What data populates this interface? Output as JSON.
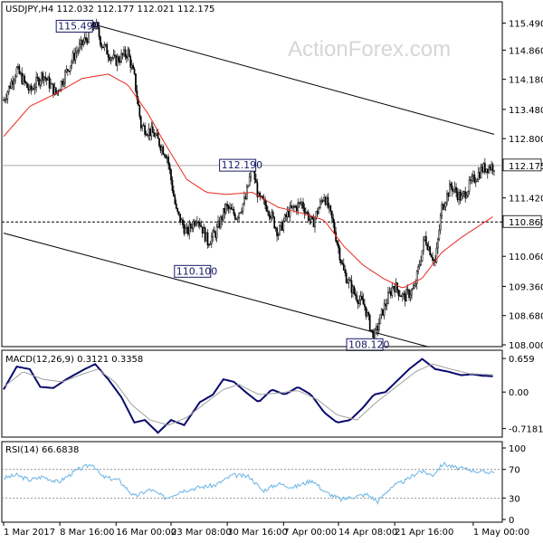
{
  "header": {
    "main": "USDJPY,H4  112.032 112.177 112.021 112.175",
    "macd": "MACD(12,26,9) 0.3121 0.3358",
    "rsi": "RSI(14) 66.6838"
  },
  "watermark": "ActionForex.com",
  "colors": {
    "candle": "#000000",
    "ma": "#e8281e",
    "macd_line": "#0a0a6e",
    "macd_signal": "#a0a0a0",
    "rsi": "#6cb4e4",
    "channel": "#000000"
  },
  "chart_data": [
    {
      "type": "candlestick",
      "title": "USDJPY,H4",
      "ylim": [
        108.0,
        115.9
      ],
      "y_ticks": [
        "115.490",
        "114.860",
        "114.180",
        "113.480",
        "112.800",
        "112.175",
        "111.420",
        "110.860",
        "110.060",
        "109.360",
        "108.680",
        "108.000"
      ],
      "x_ticks": [
        "1 Mar 2017",
        "8 Mar 16:00",
        "16 Mar 00:00",
        "23 Mar 08:00",
        "30 Mar 16:00",
        "7 Apr 00:00",
        "14 Apr 08:00",
        "21 Apr 16:00",
        "1 May 00:00"
      ],
      "x_tick_index": [
        0,
        43,
        86,
        128,
        171,
        214,
        256,
        299,
        359
      ],
      "bar_count": 376,
      "close_path": [
        [
          0,
          113.7
        ],
        [
          10,
          114.4
        ],
        [
          20,
          113.9
        ],
        [
          30,
          114.3
        ],
        [
          40,
          113.85
        ],
        [
          55,
          114.8
        ],
        [
          65,
          115.2
        ],
        [
          70,
          115.49
        ],
        [
          75,
          115.0
        ],
        [
          85,
          114.6
        ],
        [
          95,
          114.8
        ],
        [
          100,
          114.2
        ],
        [
          105,
          113.1
        ],
        [
          115,
          112.9
        ],
        [
          125,
          112.4
        ],
        [
          132,
          111.1
        ],
        [
          140,
          110.6
        ],
        [
          148,
          111.0
        ],
        [
          156,
          110.4
        ],
        [
          162,
          110.6
        ],
        [
          170,
          111.2
        ],
        [
          178,
          111.0
        ],
        [
          185,
          111.4
        ],
        [
          190,
          112.19
        ],
        [
          195,
          111.4
        ],
        [
          202,
          111.2
        ],
        [
          210,
          110.6
        ],
        [
          218,
          111.1
        ],
        [
          228,
          111.3
        ],
        [
          236,
          110.8
        ],
        [
          245,
          111.5
        ],
        [
          252,
          110.8
        ],
        [
          260,
          109.7
        ],
        [
          268,
          109.2
        ],
        [
          276,
          108.9
        ],
        [
          283,
          108.12
        ],
        [
          290,
          108.8
        ],
        [
          298,
          109.4
        ],
        [
          306,
          109.1
        ],
        [
          314,
          109.3
        ],
        [
          322,
          110.5
        ],
        [
          330,
          109.9
        ],
        [
          335,
          111.2
        ],
        [
          342,
          111.7
        ],
        [
          350,
          111.4
        ],
        [
          358,
          111.8
        ],
        [
          366,
          112.1
        ],
        [
          375,
          112.175
        ]
      ],
      "ma_path": [
        [
          0,
          112.85
        ],
        [
          20,
          113.55
        ],
        [
          40,
          113.85
        ],
        [
          60,
          114.2
        ],
        [
          80,
          114.3
        ],
        [
          95,
          114.05
        ],
        [
          110,
          113.4
        ],
        [
          125,
          112.6
        ],
        [
          140,
          111.85
        ],
        [
          155,
          111.55
        ],
        [
          170,
          111.5
        ],
        [
          190,
          111.55
        ],
        [
          210,
          111.2
        ],
        [
          230,
          111.05
        ],
        [
          245,
          110.9
        ],
        [
          260,
          110.3
        ],
        [
          275,
          109.85
        ],
        [
          290,
          109.55
        ],
        [
          305,
          109.32
        ],
        [
          320,
          109.55
        ],
        [
          335,
          110.15
        ],
        [
          350,
          110.5
        ],
        [
          365,
          110.8
        ],
        [
          375,
          111.0
        ]
      ],
      "current_price": "112.175",
      "level_line": "110.860",
      "channel": {
        "upper": [
          [
            70,
            115.45
          ],
          [
            375,
            112.9
          ]
        ],
        "lower": [
          [
            0,
            110.6
          ],
          [
            325,
            107.95
          ]
        ]
      },
      "annotations": [
        {
          "label": "115.490",
          "x": 70,
          "y": 115.49
        },
        {
          "label": "112.190",
          "x": 190,
          "y": 112.19
        },
        {
          "label": "110.100",
          "x": 150,
          "y": 110.1
        },
        {
          "label": "108.120",
          "x": 283,
          "y": 108.12
        }
      ]
    },
    {
      "type": "line",
      "title": "MACD(12,26,9)",
      "ylim": [
        -0.85,
        0.75
      ],
      "y_ticks": [
        "0.659",
        "0.00",
        "-0.7181"
      ],
      "series": [
        {
          "role": "macd",
          "points": [
            [
              0,
              0.05
            ],
            [
              10,
              0.5
            ],
            [
              20,
              0.45
            ],
            [
              28,
              0.1
            ],
            [
              38,
              0.08
            ],
            [
              48,
              0.25
            ],
            [
              62,
              0.45
            ],
            [
              70,
              0.55
            ],
            [
              80,
              0.25
            ],
            [
              90,
              -0.1
            ],
            [
              100,
              -0.6
            ],
            [
              108,
              -0.55
            ],
            [
              118,
              -0.8
            ],
            [
              128,
              -0.55
            ],
            [
              138,
              -0.65
            ],
            [
              150,
              -0.2
            ],
            [
              160,
              -0.05
            ],
            [
              168,
              0.25
            ],
            [
              176,
              0.2
            ],
            [
              185,
              0.0
            ],
            [
              195,
              -0.2
            ],
            [
              205,
              0.05
            ],
            [
              215,
              -0.05
            ],
            [
              225,
              0.1
            ],
            [
              235,
              -0.05
            ],
            [
              245,
              -0.4
            ],
            [
              255,
              -0.6
            ],
            [
              265,
              -0.55
            ],
            [
              275,
              -0.3
            ],
            [
              283,
              -0.05
            ],
            [
              292,
              0.0
            ],
            [
              300,
              0.2
            ],
            [
              310,
              0.45
            ],
            [
              320,
              0.65
            ],
            [
              330,
              0.45
            ],
            [
              340,
              0.4
            ],
            [
              350,
              0.33
            ],
            [
              358,
              0.35
            ],
            [
              366,
              0.32
            ],
            [
              375,
              0.31
            ]
          ]
        },
        {
          "role": "signal",
          "points": [
            [
              0,
              0.1
            ],
            [
              15,
              0.4
            ],
            [
              30,
              0.25
            ],
            [
              45,
              0.2
            ],
            [
              60,
              0.35
            ],
            [
              72,
              0.45
            ],
            [
              85,
              0.2
            ],
            [
              98,
              -0.25
            ],
            [
              112,
              -0.55
            ],
            [
              126,
              -0.65
            ],
            [
              140,
              -0.5
            ],
            [
              155,
              -0.2
            ],
            [
              168,
              0.05
            ],
            [
              180,
              0.15
            ],
            [
              195,
              -0.05
            ],
            [
              210,
              -0.02
            ],
            [
              225,
              0.03
            ],
            [
              240,
              -0.15
            ],
            [
              255,
              -0.45
            ],
            [
              270,
              -0.55
            ],
            [
              285,
              -0.2
            ],
            [
              300,
              0.1
            ],
            [
              315,
              0.4
            ],
            [
              328,
              0.55
            ],
            [
              342,
              0.45
            ],
            [
              356,
              0.36
            ],
            [
              375,
              0.34
            ]
          ]
        }
      ]
    },
    {
      "type": "line",
      "title": "RSI(14)",
      "ylim": [
        0,
        100
      ],
      "y_ticks": [
        "100",
        "70",
        "30",
        "0"
      ],
      "levels": [
        70,
        30
      ],
      "series": [
        {
          "role": "rsi",
          "points": [
            [
              0,
              58
            ],
            [
              10,
              62
            ],
            [
              20,
              55
            ],
            [
              30,
              60
            ],
            [
              42,
              52
            ],
            [
              55,
              68
            ],
            [
              68,
              78
            ],
            [
              75,
              60
            ],
            [
              88,
              55
            ],
            [
              100,
              32
            ],
            [
              112,
              42
            ],
            [
              124,
              30
            ],
            [
              136,
              40
            ],
            [
              150,
              45
            ],
            [
              162,
              48
            ],
            [
              175,
              62
            ],
            [
              188,
              60
            ],
            [
              198,
              40
            ],
            [
              210,
              50
            ],
            [
              222,
              45
            ],
            [
              236,
              55
            ],
            [
              246,
              38
            ],
            [
              258,
              28
            ],
            [
              268,
              32
            ],
            [
              278,
              35
            ],
            [
              286,
              25
            ],
            [
              296,
              45
            ],
            [
              308,
              55
            ],
            [
              318,
              68
            ],
            [
              328,
              62
            ],
            [
              336,
              78
            ],
            [
              346,
              72
            ],
            [
              356,
              70
            ],
            [
              366,
              66
            ],
            [
              375,
              67
            ]
          ]
        }
      ]
    }
  ]
}
